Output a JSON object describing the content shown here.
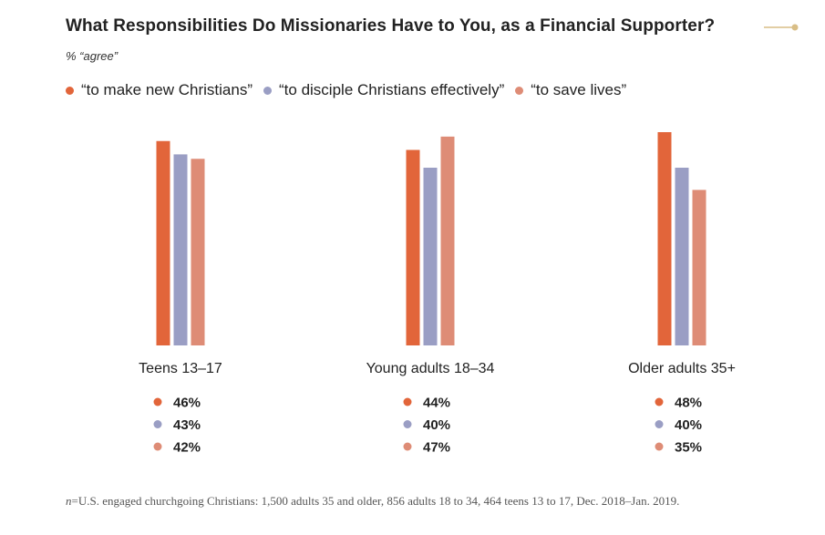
{
  "title": "What Responsibilities Do Missionaries Have to You, as a Financial Supporter?",
  "subtitle": "% “agree”",
  "footnote": {
    "n_label": "n",
    "text": "=U.S. engaged churchgoing Christians: 1,500 adults 35 and older, 856 adults 18 to 34, 464 teens 13 to 17, Dec. 2018–Jan. 2019."
  },
  "colors": {
    "series_0": "#E2653A",
    "series_1": "#9A9EC4",
    "series_2": "#DE8C76",
    "title_decoration": "#D9BE86"
  },
  "chart_data": {
    "type": "bar",
    "title": "What Responsibilities Do Missionaries Have to You, as a Financial Supporter?",
    "subtitle": "% “agree”",
    "xlabel": "",
    "ylabel": "",
    "ylim": [
      0,
      48
    ],
    "grid": false,
    "legend_position": "top",
    "categories": [
      "Teens 13–17",
      "Young adults 18–34",
      "Older adults 35+"
    ],
    "series": [
      {
        "name": "“to make new Christians”",
        "values": [
          46,
          44,
          48
        ],
        "labels": [
          "46%",
          "44%",
          "48%"
        ]
      },
      {
        "name": "“to disciple Christians effectively”",
        "values": [
          43,
          40,
          40
        ],
        "labels": [
          "43%",
          "40%",
          "40%"
        ]
      },
      {
        "name": "“to save lives”",
        "values": [
          42,
          47,
          35
        ],
        "labels": [
          "42%",
          "47%",
          "35%"
        ]
      }
    ]
  }
}
